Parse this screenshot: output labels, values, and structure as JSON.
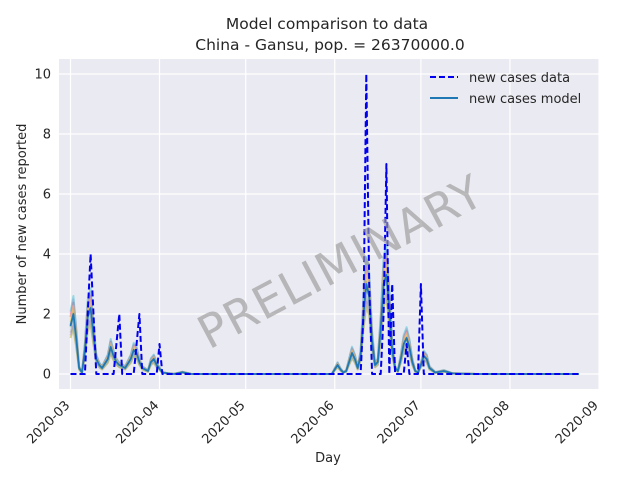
{
  "chart_data": {
    "type": "line",
    "title": "Model comparison to data",
    "subtitle": "China - Gansu, pop. = 26370000.0",
    "xlabel": "Day",
    "ylabel": "Number of new cases reported",
    "xlim": [
      "2020-02-26",
      "2020-09-01"
    ],
    "ylim": [
      -0.5,
      10.5
    ],
    "x_ticks": [
      "2020-03",
      "2020-04",
      "2020-05",
      "2020-06",
      "2020-07",
      "2020-08",
      "2020-09"
    ],
    "y_ticks": [
      "0",
      "2",
      "4",
      "6",
      "8",
      "10"
    ],
    "grid": true,
    "legend": "top-right",
    "watermark": "PRELIMINARY",
    "series": [
      {
        "name": "new cases data",
        "style": "dashed",
        "color": "#0000ee",
        "points": [
          [
            "2020-03-01",
            0
          ],
          [
            "2020-03-06",
            0
          ],
          [
            "2020-03-07",
            2
          ],
          [
            "2020-03-08",
            4
          ],
          [
            "2020-03-09",
            2
          ],
          [
            "2020-03-10",
            0
          ],
          [
            "2020-03-16",
            0
          ],
          [
            "2020-03-17",
            1
          ],
          [
            "2020-03-18",
            2
          ],
          [
            "2020-03-19",
            0
          ],
          [
            "2020-03-23",
            0
          ],
          [
            "2020-03-24",
            1
          ],
          [
            "2020-03-25",
            2
          ],
          [
            "2020-03-26",
            0
          ],
          [
            "2020-03-31",
            0
          ],
          [
            "2020-04-01",
            1
          ],
          [
            "2020-04-02",
            0
          ],
          [
            "2020-06-10",
            0
          ],
          [
            "2020-06-11",
            2
          ],
          [
            "2020-06-12",
            10
          ],
          [
            "2020-06-13",
            3
          ],
          [
            "2020-06-14",
            0
          ],
          [
            "2020-06-17",
            0
          ],
          [
            "2020-06-18",
            2
          ],
          [
            "2020-06-19",
            7
          ],
          [
            "2020-06-20",
            0
          ],
          [
            "2020-06-21",
            3
          ],
          [
            "2020-06-22",
            0
          ],
          [
            "2020-06-25",
            0
          ],
          [
            "2020-06-26",
            1
          ],
          [
            "2020-06-27",
            0
          ],
          [
            "2020-06-30",
            0
          ],
          [
            "2020-07-01",
            3
          ],
          [
            "2020-07-02",
            0
          ],
          [
            "2020-08-25",
            0
          ]
        ]
      },
      {
        "name": "new cases model",
        "style": "solid",
        "color": "#1f77b4",
        "points": [
          [
            "2020-03-01",
            1.6
          ],
          [
            "2020-03-02",
            2.0
          ],
          [
            "2020-03-03",
            1.2
          ],
          [
            "2020-03-04",
            0.2
          ],
          [
            "2020-03-05",
            0.05
          ],
          [
            "2020-03-06",
            0.8
          ],
          [
            "2020-03-07",
            1.9
          ],
          [
            "2020-03-08",
            2.2
          ],
          [
            "2020-03-09",
            1.3
          ],
          [
            "2020-03-10",
            0.5
          ],
          [
            "2020-03-11",
            0.3
          ],
          [
            "2020-03-12",
            0.2
          ],
          [
            "2020-03-14",
            0.5
          ],
          [
            "2020-03-15",
            0.9
          ],
          [
            "2020-03-16",
            0.6
          ],
          [
            "2020-03-17",
            0.4
          ],
          [
            "2020-03-18",
            0.3
          ],
          [
            "2020-03-20",
            0.2
          ],
          [
            "2020-03-22",
            0.5
          ],
          [
            "2020-03-23",
            0.8
          ],
          [
            "2020-03-24",
            0.7
          ],
          [
            "2020-03-25",
            0.4
          ],
          [
            "2020-03-26",
            0.2
          ],
          [
            "2020-03-28",
            0.1
          ],
          [
            "2020-03-29",
            0.4
          ],
          [
            "2020-03-30",
            0.5
          ],
          [
            "2020-03-31",
            0.3
          ],
          [
            "2020-04-02",
            0.05
          ],
          [
            "2020-04-04",
            0.02
          ],
          [
            "2020-04-06",
            0.0
          ],
          [
            "2020-04-09",
            0.06
          ],
          [
            "2020-04-12",
            0.0
          ],
          [
            "2020-05-31",
            0.0
          ],
          [
            "2020-06-01",
            0.15
          ],
          [
            "2020-06-02",
            0.3
          ],
          [
            "2020-06-03",
            0.15
          ],
          [
            "2020-06-04",
            0.05
          ],
          [
            "2020-06-05",
            0.1
          ],
          [
            "2020-06-06",
            0.4
          ],
          [
            "2020-06-07",
            0.7
          ],
          [
            "2020-06-08",
            0.5
          ],
          [
            "2020-06-09",
            0.2
          ],
          [
            "2020-06-10",
            0.6
          ],
          [
            "2020-06-11",
            2.0
          ],
          [
            "2020-06-12",
            3.0
          ],
          [
            "2020-06-13",
            2.6
          ],
          [
            "2020-06-14",
            1.1
          ],
          [
            "2020-06-15",
            0.3
          ],
          [
            "2020-06-16",
            0.4
          ],
          [
            "2020-06-17",
            1.5
          ],
          [
            "2020-06-18",
            3.0
          ],
          [
            "2020-06-19",
            3.3
          ],
          [
            "2020-06-20",
            2.2
          ],
          [
            "2020-06-21",
            0.8
          ],
          [
            "2020-06-22",
            0.2
          ],
          [
            "2020-06-23",
            0.1
          ],
          [
            "2020-06-24",
            0.5
          ],
          [
            "2020-06-25",
            1.0
          ],
          [
            "2020-06-26",
            1.2
          ],
          [
            "2020-06-27",
            0.9
          ],
          [
            "2020-06-28",
            0.4
          ],
          [
            "2020-06-29",
            0.1
          ],
          [
            "2020-06-30",
            0.05
          ],
          [
            "2020-07-01",
            0.3
          ],
          [
            "2020-07-02",
            0.6
          ],
          [
            "2020-07-03",
            0.5
          ],
          [
            "2020-07-04",
            0.2
          ],
          [
            "2020-07-06",
            0.05
          ],
          [
            "2020-07-09",
            0.1
          ],
          [
            "2020-07-12",
            0.02
          ],
          [
            "2020-07-20",
            0.0
          ],
          [
            "2020-08-25",
            0.0
          ]
        ]
      }
    ],
    "ensemble": {
      "count": 12,
      "colors": [
        "#ff7f0e",
        "#2ca02c",
        "#d62728",
        "#9467bd",
        "#8c564b",
        "#e377c2",
        "#7f7f7f",
        "#bcbd22",
        "#17becf",
        "#aec7e8",
        "#ffbb78",
        "#98df8a"
      ],
      "opacity": 0.4
    }
  }
}
